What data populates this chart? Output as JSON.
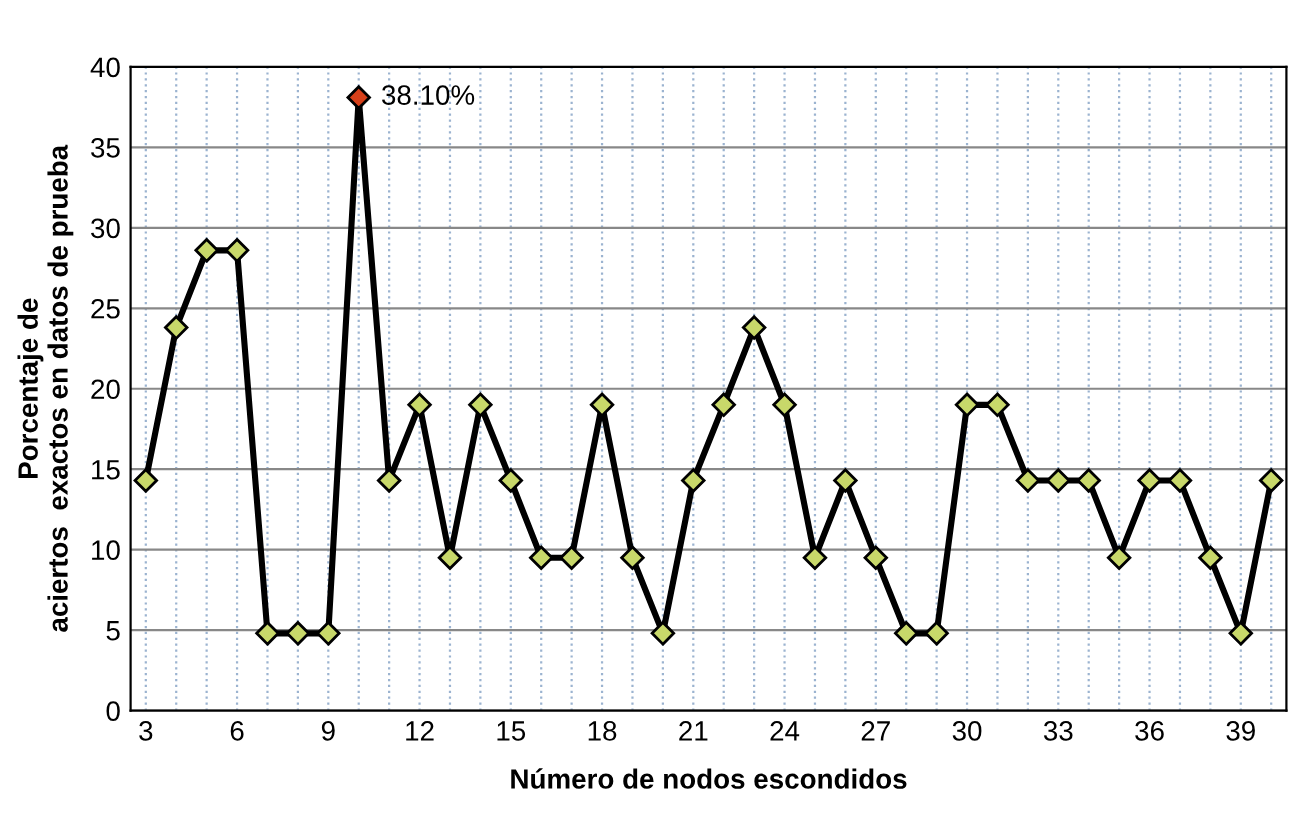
{
  "chart_data": {
    "type": "line",
    "xlabel": "Número de nodos escondidos",
    "ylabel": "Porcentaje de\naciertos  exactos en datos de prueba",
    "x": [
      3,
      4,
      5,
      6,
      7,
      8,
      9,
      10,
      11,
      12,
      13,
      14,
      15,
      16,
      17,
      18,
      19,
      20,
      21,
      22,
      23,
      24,
      25,
      26,
      27,
      28,
      29,
      30,
      31,
      32,
      33,
      34,
      35,
      36,
      37,
      38,
      39,
      40
    ],
    "series": [
      {
        "color": "#000000",
        "marker": "diamond",
        "line_style": "solid",
        "colors": [
          "#c8d86a",
          "#c8d86a",
          "#c8d86a",
          "#c8d86a",
          "#c8d86a",
          "#c8d86a",
          "#c8d86a",
          "#d6401a",
          "#c8d86a",
          "#c8d86a",
          "#c8d86a",
          "#c8d86a",
          "#c8d86a",
          "#c8d86a",
          "#c8d86a",
          "#c8d86a",
          "#c8d86a",
          "#c8d86a",
          "#c8d86a",
          "#c8d86a",
          "#c8d86a",
          "#c8d86a",
          "#c8d86a",
          "#c8d86a",
          "#c8d86a",
          "#c8d86a",
          "#c8d86a",
          "#c8d86a",
          "#c8d86a",
          "#c8d86a",
          "#c8d86a",
          "#c8d86a",
          "#c8d86a",
          "#c8d86a",
          "#c8d86a",
          "#c8d86a",
          "#c8d86a",
          "#c8d86a"
        ],
        "values": [
          14.3,
          23.8,
          28.6,
          28.6,
          4.8,
          4.8,
          4.8,
          38.1,
          14.3,
          19.0,
          9.5,
          19.0,
          14.3,
          9.5,
          9.5,
          19.0,
          9.5,
          4.8,
          14.3,
          19.0,
          23.8,
          19.0,
          9.5,
          14.3,
          9.5,
          4.8,
          4.8,
          19.0,
          19.0,
          14.3,
          14.3,
          14.3,
          9.5,
          14.3,
          14.3,
          9.5,
          4.8,
          14.3
        ]
      }
    ],
    "annotations": [
      {
        "text": "38.10%",
        "x": 10,
        "y": 38.1
      }
    ],
    "xlim": [
      2.5,
      40.5
    ],
    "xticks": [
      3,
      {
        "value": 4,
        "label": null
      },
      {
        "value": 5,
        "label": null
      },
      6,
      {
        "value": 7,
        "label": null
      },
      {
        "value": 8,
        "label": null
      },
      9,
      {
        "value": 10,
        "label": null
      },
      {
        "value": 11,
        "label": null
      },
      12,
      {
        "value": 13,
        "label": null
      },
      {
        "value": 14,
        "label": null
      },
      15,
      {
        "value": 16,
        "label": null
      },
      {
        "value": 17,
        "label": null
      },
      18,
      {
        "value": 19,
        "label": null
      },
      {
        "value": 20,
        "label": null
      },
      21,
      {
        "value": 22,
        "label": null
      },
      {
        "value": 23,
        "label": null
      },
      24,
      {
        "value": 25,
        "label": null
      },
      {
        "value": 26,
        "label": null
      },
      27,
      {
        "value": 28,
        "label": null
      },
      {
        "value": 29,
        "label": null
      },
      30,
      {
        "value": 31,
        "label": null
      },
      {
        "value": 32,
        "label": null
      },
      33,
      {
        "value": 34,
        "label": null
      },
      {
        "value": 35,
        "label": null
      },
      36,
      {
        "value": 37,
        "label": null
      },
      {
        "value": 38,
        "label": null
      },
      39,
      {
        "value": 40,
        "label": null
      }
    ],
    "ylim": [
      0,
      40
    ],
    "yticks": [
      0,
      5,
      10,
      15,
      20,
      25,
      30,
      35,
      40
    ],
    "grid": true
  }
}
